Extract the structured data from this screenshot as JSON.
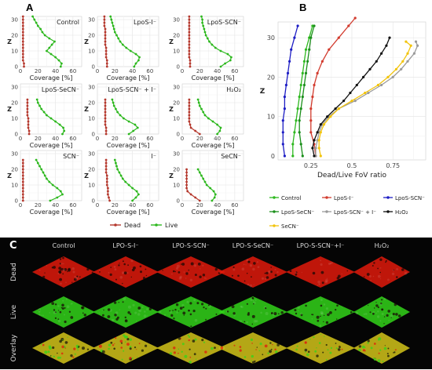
{
  "figure": {
    "label_a": "A",
    "label_b": "B",
    "label_c": "C"
  },
  "panel_a": {
    "xlabel": "Coverage [%]",
    "ylabel": "Z",
    "legend": {
      "dead": "Dead",
      "live": "Live"
    },
    "colors": {
      "dead": "#b5382d",
      "live": "#2db81e"
    }
  },
  "panel_b": {
    "xlabel": "Dead/Live FoV ratio",
    "ylabel": "Z"
  },
  "panel_c": {
    "columns": [
      "Control",
      "LPO-S-I⁻",
      "LPO-S-SCN⁻",
      "LPO-S-SeCN⁻",
      "LPO-S-SCN⁻+I⁻",
      "H₂O₂"
    ],
    "rows": [
      "Dead",
      "Live",
      "Overlay"
    ]
  },
  "chart_data": [
    {
      "type": "line",
      "panel": "A",
      "layout": "3x3 facets",
      "xlim": [
        0,
        70
      ],
      "xticks": [
        0,
        20,
        40,
        60
      ],
      "ylim": [
        0,
        32
      ],
      "yticks": [
        0,
        10,
        20,
        30
      ],
      "grid": true,
      "legend_position": "bottom",
      "xlabel": "Coverage [%]",
      "ylabel": "Z",
      "facets": [
        {
          "title": "Control",
          "z": [
            0,
            2,
            4,
            6,
            8,
            10,
            12,
            14,
            16,
            18,
            20,
            22,
            24,
            26,
            28,
            30,
            32
          ],
          "dead": [
            4,
            4,
            3,
            3,
            3,
            3,
            3,
            3,
            3,
            3,
            3,
            3,
            3,
            3,
            3,
            3,
            3
          ],
          "live": [
            46,
            47,
            44,
            40,
            35,
            30,
            33,
            36,
            39,
            33,
            28,
            25,
            23,
            20,
            18,
            16,
            14
          ]
        },
        {
          "title": "LpoS-I⁻",
          "z": [
            0,
            2,
            4,
            6,
            8,
            10,
            12,
            14,
            16,
            18,
            20,
            22,
            24,
            26,
            28,
            30,
            32
          ],
          "dead": [
            11,
            11,
            11,
            10,
            10,
            10,
            10,
            9,
            9,
            9,
            9,
            9,
            9,
            8,
            8,
            8,
            8
          ],
          "live": [
            42,
            44,
            47,
            48,
            44,
            38,
            33,
            29,
            26,
            24,
            22,
            20,
            19,
            18,
            17,
            16,
            15
          ]
        },
        {
          "title": "LpoS-SCN⁻",
          "z": [
            0,
            2,
            4,
            6,
            8,
            10,
            12,
            14,
            16,
            18,
            20,
            22,
            24,
            26,
            28,
            30,
            32
          ],
          "dead": [
            9,
            9,
            9,
            8,
            8,
            8,
            8,
            8,
            8,
            8,
            8,
            8,
            8,
            8,
            8,
            8,
            8
          ],
          "live": [
            44,
            49,
            55,
            56,
            52,
            44,
            38,
            34,
            31,
            29,
            27,
            26,
            25,
            24,
            23,
            23,
            22
          ]
        },
        {
          "title": "LpoS-SeCN⁻",
          "z": [
            0,
            2,
            4,
            6,
            8,
            10,
            12,
            14,
            16,
            18,
            20,
            22
          ],
          "dead": [
            10,
            10,
            9,
            9,
            9,
            9,
            8,
            8,
            8,
            8,
            8,
            8
          ],
          "live": [
            48,
            50,
            49,
            45,
            40,
            35,
            30,
            27,
            24,
            22,
            20,
            19
          ]
        },
        {
          "title": "LpoS-SCN⁻ + I⁻",
          "z": [
            0,
            2,
            4,
            6,
            8,
            10,
            12,
            14,
            16,
            18,
            20,
            22
          ],
          "dead": [
            10,
            10,
            10,
            9,
            9,
            9,
            9,
            9,
            9,
            9,
            9,
            9
          ],
          "live": [
            36,
            41,
            46,
            43,
            36,
            30,
            26,
            23,
            21,
            19,
            18,
            17
          ]
        },
        {
          "title": "H₂O₂",
          "z": [
            0,
            2,
            4,
            6,
            8,
            10,
            12,
            14,
            16,
            18,
            20,
            22
          ],
          "dead": [
            20,
            15,
            10,
            9,
            8,
            8,
            8,
            8,
            8,
            8,
            8,
            8
          ],
          "live": [
            40,
            43,
            44,
            40,
            35,
            30,
            26,
            24,
            22,
            20,
            19,
            18
          ]
        },
        {
          "title": "SCN⁻",
          "z": [
            0,
            2,
            4,
            6,
            8,
            10,
            12,
            14,
            16,
            18,
            20,
            22,
            24,
            26
          ],
          "dead": [
            3,
            3,
            3,
            3,
            3,
            3,
            3,
            3,
            3,
            3,
            3,
            3,
            3,
            3
          ],
          "live": [
            34,
            42,
            48,
            46,
            42,
            37,
            33,
            30,
            28,
            26,
            24,
            22,
            20,
            18
          ]
        },
        {
          "title": "I⁻",
          "z": [
            0,
            2,
            4,
            6,
            8,
            10,
            12,
            14,
            16,
            18,
            20,
            22,
            24,
            26
          ],
          "dead": [
            14,
            13,
            12,
            12,
            12,
            11,
            11,
            11,
            11,
            10,
            10,
            10,
            10,
            10
          ],
          "live": [
            40,
            44,
            47,
            45,
            40,
            36,
            32,
            29,
            27,
            25,
            23,
            22,
            21,
            20
          ]
        },
        {
          "title": "SeCN⁻",
          "z": [
            0,
            2,
            4,
            6,
            8,
            10,
            12,
            14,
            16,
            18,
            20
          ],
          "dead": [
            20,
            15,
            10,
            6,
            5,
            5,
            5,
            5,
            5,
            5,
            5
          ],
          "live": [
            34,
            37,
            38,
            36,
            32,
            28,
            26,
            24,
            22,
            20,
            18
          ]
        }
      ]
    },
    {
      "type": "line",
      "panel": "B",
      "xlabel": "Dead/Live FoV ratio",
      "ylabel": "Z",
      "xlim": [
        0.05,
        0.95
      ],
      "xticks": [
        0.25,
        0.5,
        0.75
      ],
      "ylim": [
        -1,
        34
      ],
      "yticks": [
        0,
        10,
        20,
        30
      ],
      "grid": true,
      "legend_position": "bottom",
      "series": [
        {
          "name": "Control",
          "color": "#2db81e",
          "z": [
            0,
            3,
            6,
            9,
            12,
            15,
            18,
            21,
            24,
            27,
            30,
            33
          ],
          "x": [
            0.14,
            0.14,
            0.15,
            0.16,
            0.17,
            0.18,
            0.19,
            0.2,
            0.21,
            0.22,
            0.24,
            0.26
          ]
        },
        {
          "name": "LpoS-I⁻",
          "color": "#d23b2e",
          "z": [
            0,
            3,
            6,
            9,
            12,
            15,
            18,
            21,
            24,
            27,
            30,
            33,
            35
          ],
          "x": [
            0.28,
            0.27,
            0.25,
            0.25,
            0.25,
            0.26,
            0.27,
            0.29,
            0.32,
            0.36,
            0.42,
            0.48,
            0.52
          ]
        },
        {
          "name": "LpoS-SCN⁻",
          "color": "#1d1dc4",
          "z": [
            0,
            3,
            6,
            9,
            12,
            15,
            18,
            21,
            24,
            27,
            30,
            33
          ],
          "x": [
            0.09,
            0.08,
            0.08,
            0.08,
            0.09,
            0.09,
            0.1,
            0.11,
            0.12,
            0.13,
            0.15,
            0.17
          ]
        },
        {
          "name": "LpoS-SeCN⁻",
          "color": "#1a8f1a",
          "z": [
            0,
            3,
            6,
            9,
            12,
            15,
            18,
            21,
            24,
            27,
            30,
            33
          ],
          "x": [
            0.2,
            0.19,
            0.18,
            0.18,
            0.19,
            0.2,
            0.21,
            0.22,
            0.23,
            0.24,
            0.25,
            0.27
          ]
        },
        {
          "name": "LpoS-SCN⁻ + I⁻",
          "color": "#9a9a9a",
          "z": [
            0,
            2,
            4,
            6,
            8,
            10,
            12,
            14,
            16,
            18,
            20,
            22,
            24,
            26,
            28,
            29
          ],
          "x": [
            0.28,
            0.28,
            0.29,
            0.3,
            0.32,
            0.36,
            0.42,
            0.52,
            0.6,
            0.68,
            0.75,
            0.8,
            0.84,
            0.88,
            0.9,
            0.89
          ]
        },
        {
          "name": "H₂O₂",
          "color": "#111111",
          "z": [
            0,
            2,
            4,
            6,
            8,
            10,
            12,
            14,
            16,
            18,
            20,
            22,
            24,
            26,
            28,
            30
          ],
          "x": [
            0.27,
            0.26,
            0.27,
            0.29,
            0.31,
            0.35,
            0.4,
            0.45,
            0.49,
            0.53,
            0.57,
            0.61,
            0.65,
            0.68,
            0.71,
            0.73
          ]
        },
        {
          "name": "SeCN⁻",
          "color": "#f2c40c",
          "z": [
            0,
            2,
            4,
            6,
            8,
            10,
            12,
            14,
            16,
            18,
            20,
            22,
            24,
            26,
            28,
            29
          ],
          "x": [
            0.31,
            0.3,
            0.3,
            0.31,
            0.33,
            0.37,
            0.42,
            0.5,
            0.58,
            0.66,
            0.72,
            0.77,
            0.81,
            0.84,
            0.86,
            0.83
          ]
        }
      ]
    }
  ],
  "microscopy": {
    "dead_color": "#e01a0c",
    "live_color": "#33d41a",
    "overlay_color": "#d4c41a"
  }
}
